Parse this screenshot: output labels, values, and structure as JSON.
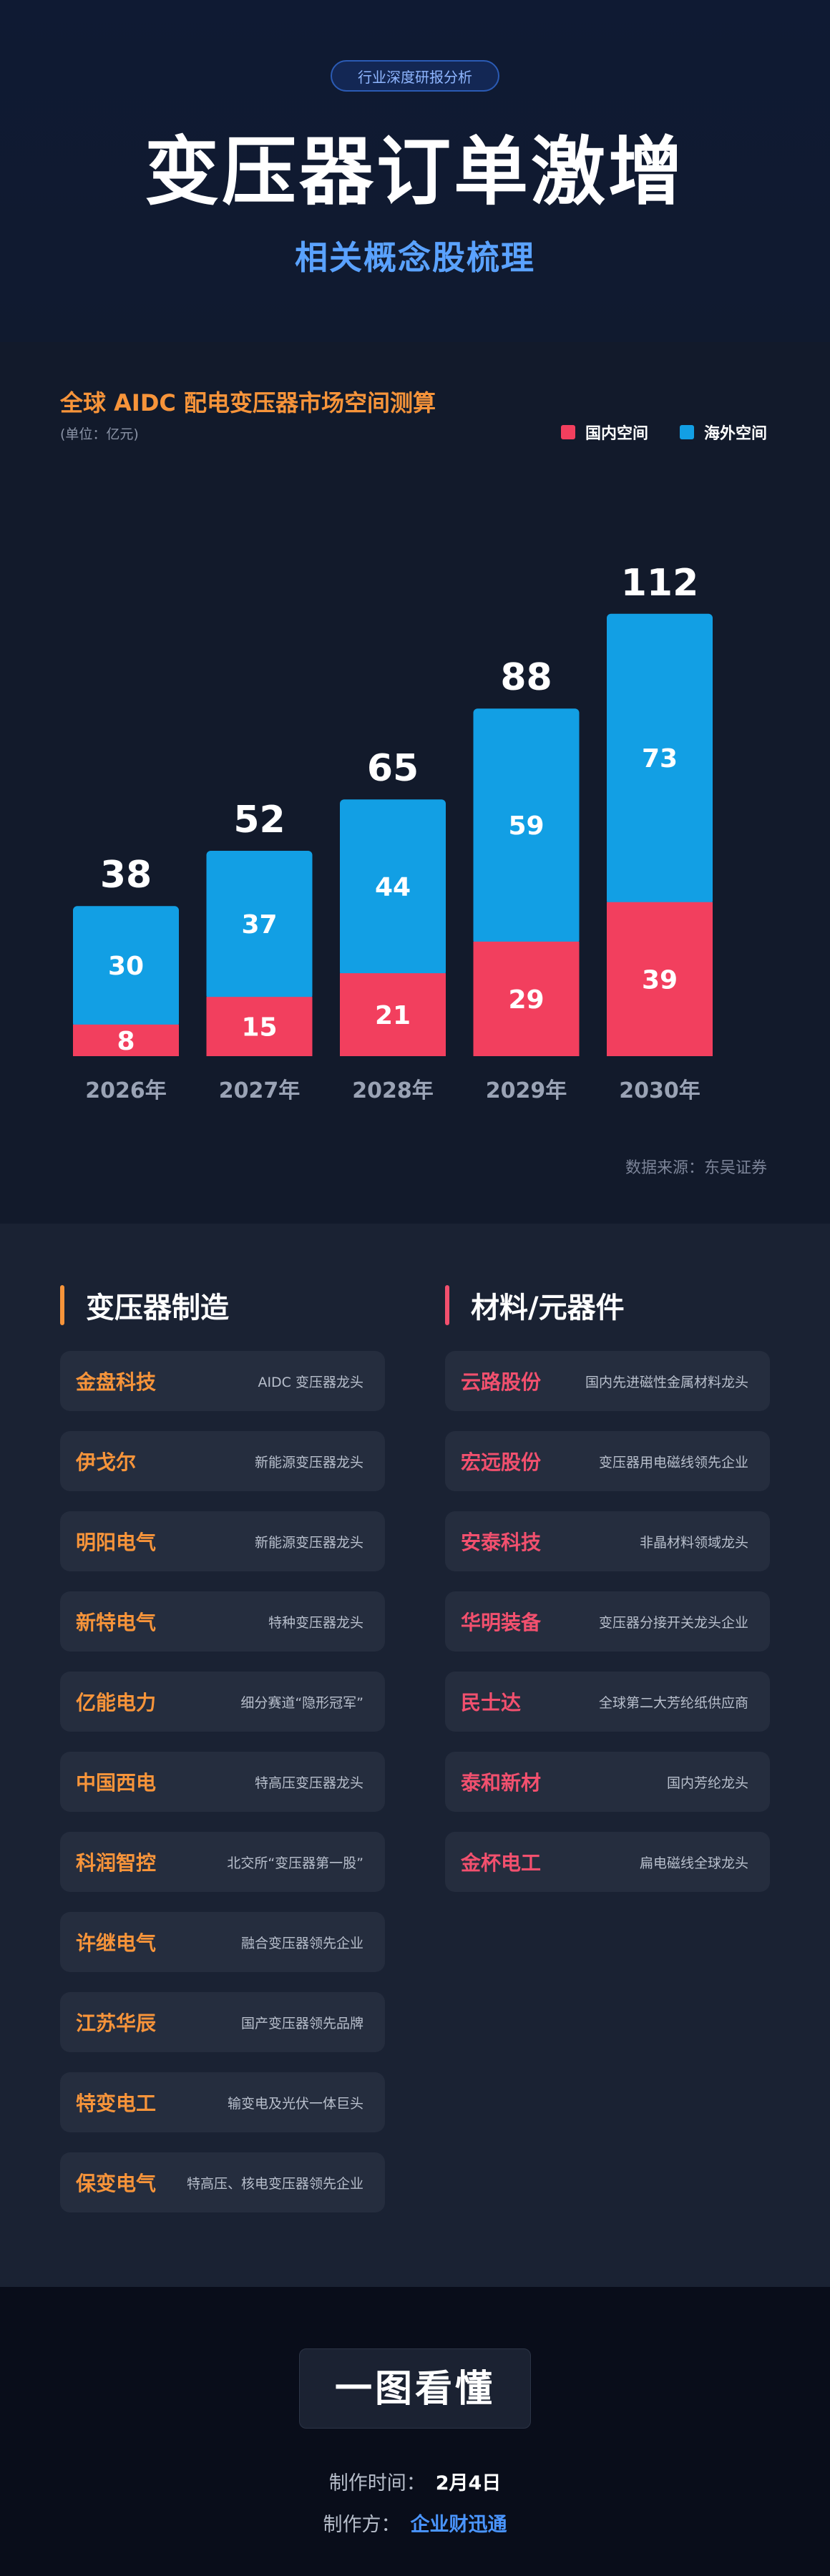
{
  "header": {
    "tag": "行业深度研报分析",
    "title": "变压器订单激增",
    "subtitle": "相关概念股梳理"
  },
  "chart": {
    "title": "全球 AIDC 配电变压器市场空间测算",
    "unit": "(单位：亿元)",
    "source": "数据来源：东吴证券"
  },
  "chart_data": {
    "type": "bar",
    "stacked": true,
    "title": "全球 AIDC 配电变压器市场空间测算",
    "unit": "亿元",
    "categories": [
      "2026年",
      "2027年",
      "2028年",
      "2029年",
      "2030年"
    ],
    "series": [
      {
        "name": "国内空间",
        "values": [
          8,
          15,
          21,
          29,
          39
        ],
        "color": "#f23f5e"
      },
      {
        "name": "海外空间",
        "values": [
          30,
          37,
          44,
          59,
          73
        ],
        "color": "#129fe4"
      }
    ],
    "totals": [
      38,
      52,
      65,
      88,
      112
    ],
    "legend_position": "top-right",
    "grid": false
  },
  "lists": {
    "left": {
      "title": "变压器制造",
      "accent": "#f7943a",
      "items": [
        {
          "name": "金盘科技",
          "desc": "AIDC 变压器龙头"
        },
        {
          "name": "伊戈尔",
          "desc": "新能源变压器龙头"
        },
        {
          "name": "明阳电气",
          "desc": "新能源变压器龙头"
        },
        {
          "name": "新特电气",
          "desc": "特种变压器龙头"
        },
        {
          "name": "亿能电力",
          "desc": "细分赛道“隐形冠军”"
        },
        {
          "name": "中国西电",
          "desc": "特高压变压器龙头"
        },
        {
          "name": "科润智控",
          "desc": "北交所“变压器第一股”"
        },
        {
          "name": "许继电气",
          "desc": "融合变压器领先企业"
        },
        {
          "name": "江苏华辰",
          "desc": "国产变压器领先品牌"
        },
        {
          "name": "特变电工",
          "desc": "输变电及光伏一体巨头"
        },
        {
          "name": "保变电气",
          "desc": "特高压、核电变压器领先企业"
        }
      ]
    },
    "right": {
      "title": "材料/元器件",
      "accent": "#f2506e",
      "items": [
        {
          "name": "云路股份",
          "desc": "国内先进磁性金属材料龙头"
        },
        {
          "name": "宏远股份",
          "desc": "变压器用电磁线领先企业"
        },
        {
          "name": "安泰科技",
          "desc": "非晶材料领域龙头"
        },
        {
          "name": "华明装备",
          "desc": "变压器分接开关龙头企业"
        },
        {
          "name": "民士达",
          "desc": "全球第二大芳纶纸供应商"
        },
        {
          "name": "泰和新材",
          "desc": "国内芳纶龙头"
        },
        {
          "name": "金杯电工",
          "desc": "扁电磁线全球龙头"
        }
      ]
    }
  },
  "footer": {
    "badge": "一图看懂",
    "made_time_label": "制作时间：",
    "made_time": "2月4日",
    "maker_label": "制作方：",
    "maker": "企业财迅通"
  }
}
